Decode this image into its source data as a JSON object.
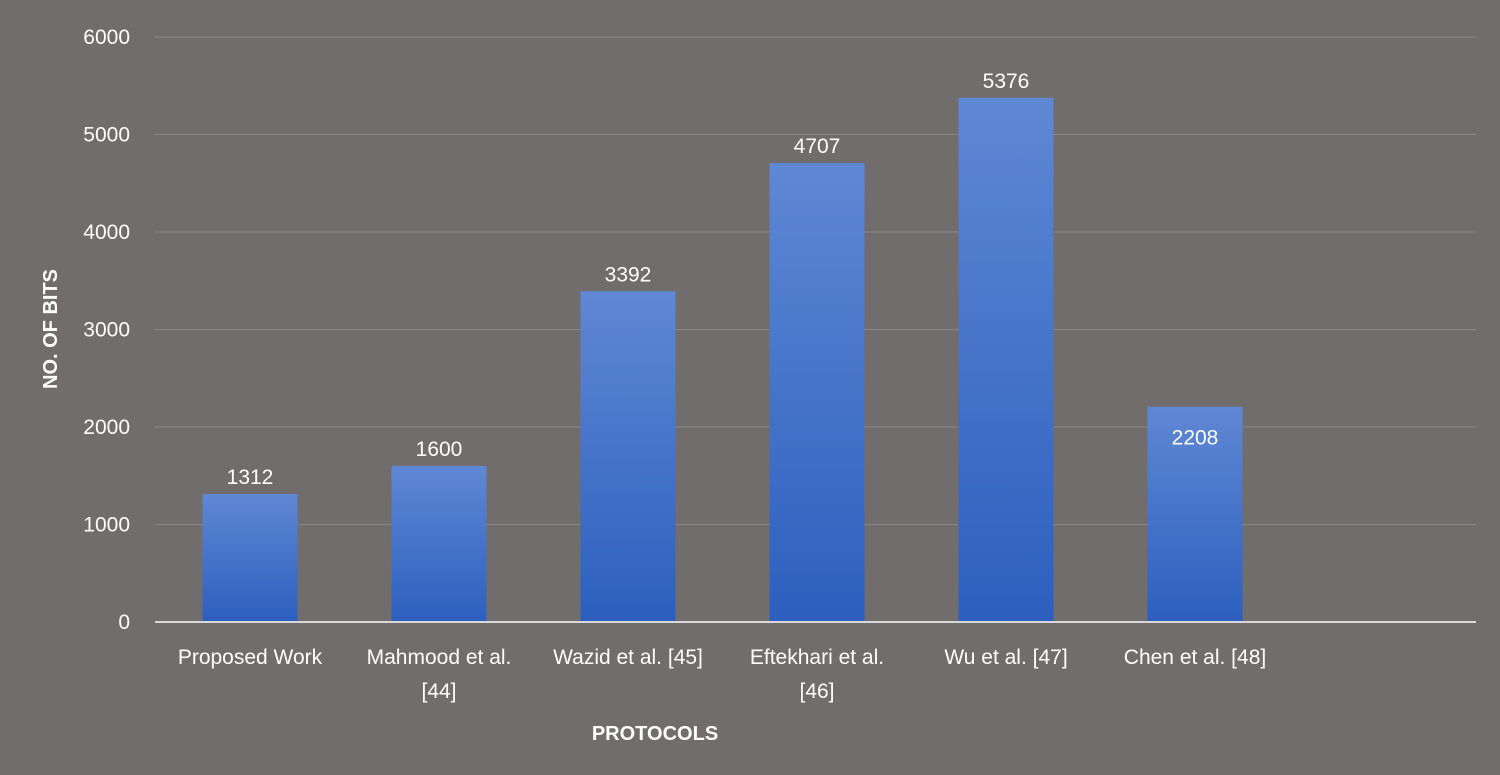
{
  "chart_data": {
    "type": "bar",
    "categories": [
      [
        "Proposed Work"
      ],
      [
        "Mahmood et al.",
        "[44]"
      ],
      [
        "Wazid et al. [45]"
      ],
      [
        "Eftekhari et al.",
        "[46]"
      ],
      [
        "Wu et al. [47]"
      ],
      [
        "Chen et al. [48]"
      ]
    ],
    "values": [
      1312,
      1600,
      3392,
      4707,
      5376,
      2208
    ],
    "data_labels": [
      "1312",
      "1600",
      "3392",
      "4707",
      "5376",
      "2208"
    ],
    "yticks": [
      "0",
      "1000",
      "2000",
      "3000",
      "4000",
      "5000",
      "6000"
    ],
    "xlabel": "PROTOCOLS",
    "ylabel": "NO. OF BITS",
    "ylim": [
      0,
      6000
    ],
    "grid": true,
    "legend": "none",
    "colors": {
      "background": "#716d6c",
      "bar_top": "#5f88d4",
      "bar_bottom": "#2c5fbe",
      "grid": "#8a8685",
      "axis": "#d9d9d9",
      "text": "#ffffff"
    }
  }
}
